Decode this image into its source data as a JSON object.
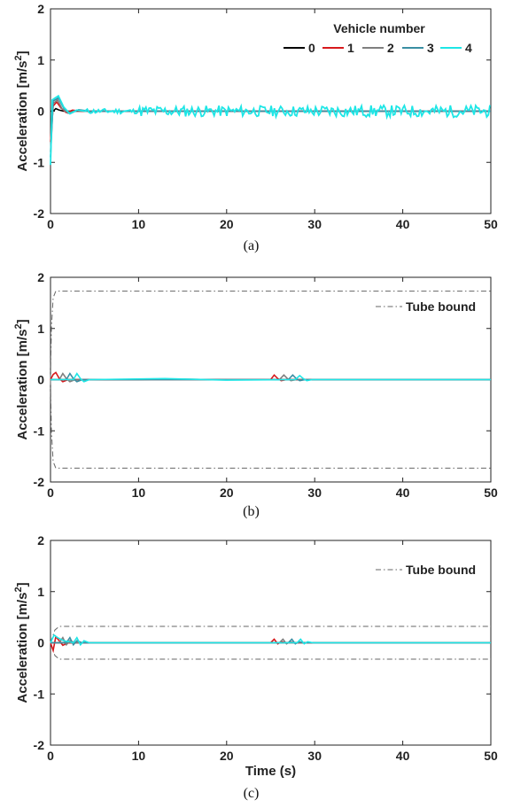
{
  "chart_data": [
    {
      "type": "line",
      "caption": "(a)",
      "xlabel": "",
      "ylabel": "Acceleration [m/s^2]",
      "xlim": [
        0,
        50
      ],
      "ylim": [
        -2,
        2
      ],
      "xticks": [
        0,
        10,
        20,
        30,
        40,
        50
      ],
      "yticks": [
        -2,
        -1,
        0,
        1,
        2
      ],
      "legend": {
        "title": "Vehicle number",
        "placement": "top-right",
        "entries": [
          "0",
          "1",
          "2",
          "3",
          "4"
        ]
      },
      "series": [
        {
          "name": "0",
          "color": "#000000",
          "x": [
            0,
            0.3,
            0.6,
            1.0,
            1.5,
            2.0,
            3.0,
            50
          ],
          "y": [
            0,
            0,
            0.05,
            0.02,
            0.0,
            0.0,
            0.0,
            0.0
          ]
        },
        {
          "name": "1",
          "color": "#d7191c",
          "x": [
            0,
            0.3,
            0.7,
            1.2,
            1.8,
            2.5,
            3.5,
            5,
            50
          ],
          "y": [
            -0.6,
            0.1,
            0.18,
            0.06,
            -0.03,
            0.02,
            0.0,
            0.0,
            0.0
          ]
        },
        {
          "name": "2",
          "color": "#7f7f7f",
          "x": [
            0,
            0.3,
            0.8,
            1.3,
            2.0,
            3.0,
            4.0,
            50
          ],
          "y": [
            -0.8,
            0.15,
            0.22,
            0.05,
            -0.04,
            0.02,
            0.0,
            0.0
          ]
        },
        {
          "name": "3",
          "color": "#3a8fa3",
          "x": [
            0,
            0.3,
            0.9,
            1.5,
            2.2,
            3.2,
            4.5,
            50
          ],
          "y": [
            -0.9,
            0.2,
            0.26,
            0.06,
            -0.05,
            0.03,
            0.0,
            0.0
          ]
        },
        {
          "name": "4",
          "color": "#1ee6e6",
          "noisy": true,
          "x": [
            0,
            0.2,
            0.9,
            1.5,
            2.2,
            3.0,
            4.0,
            50
          ],
          "y": [
            -1.05,
            0.22,
            0.3,
            0.08,
            -0.05,
            0.02,
            0.0,
            0.0
          ]
        }
      ]
    },
    {
      "type": "line",
      "caption": "(b)",
      "xlabel": "",
      "ylabel": "Acceleration [m/s^2]",
      "xlim": [
        0,
        50
      ],
      "ylim": [
        -2,
        2
      ],
      "xticks": [
        0,
        10,
        20,
        30,
        40,
        50
      ],
      "yticks": [
        -2,
        -1,
        0,
        1,
        2
      ],
      "legend": {
        "placement": "top-right",
        "entries": [
          "Tube bound"
        ]
      },
      "bound": {
        "name": "Tube bound",
        "x": [
          0,
          0.1,
          0.3,
          0.6,
          50
        ],
        "upper": [
          0,
          1.0,
          1.6,
          1.73,
          1.73
        ],
        "lower": [
          0,
          -1.0,
          -1.6,
          -1.73,
          -1.73
        ]
      },
      "series": [
        {
          "name": "0",
          "color": "#000000",
          "x": [
            0,
            2,
            10,
            13,
            20,
            25,
            50
          ],
          "y": [
            0,
            0,
            0.0,
            0.01,
            0.0,
            0.0,
            0.0
          ]
        },
        {
          "name": "1",
          "color": "#d7191c",
          "x": [
            0,
            0.3,
            0.6,
            1.0,
            1.4,
            2.0,
            25.0,
            25.4,
            25.8,
            26.2,
            26.8,
            50
          ],
          "y": [
            0,
            0.1,
            0.14,
            0.02,
            -0.04,
            0.0,
            0.0,
            0.09,
            0.02,
            -0.02,
            0.0,
            0.0
          ]
        },
        {
          "name": "2",
          "color": "#7f7f7f",
          "x": [
            0,
            1.0,
            1.4,
            1.8,
            2.2,
            2.8,
            26.0,
            26.5,
            26.9,
            27.3,
            27.9,
            50
          ],
          "y": [
            0,
            0.0,
            0.12,
            0.02,
            -0.04,
            0.0,
            0.0,
            0.09,
            0.02,
            -0.02,
            0.0,
            0.0
          ]
        },
        {
          "name": "3",
          "color": "#3a8fa3",
          "x": [
            0,
            1.8,
            2.2,
            2.6,
            3.0,
            3.6,
            27.0,
            27.5,
            27.9,
            28.3,
            28.9,
            50
          ],
          "y": [
            0,
            0.0,
            0.12,
            0.02,
            -0.04,
            0.0,
            0.0,
            0.09,
            0.02,
            -0.02,
            0.0,
            0.0
          ]
        },
        {
          "name": "4",
          "color": "#1ee6e6",
          "x": [
            0,
            2.6,
            3.0,
            3.4,
            3.8,
            4.4,
            13,
            20,
            27.8,
            28.3,
            28.7,
            29.1,
            29.7,
            50
          ],
          "y": [
            0,
            0.0,
            0.12,
            0.02,
            -0.04,
            0.0,
            0.02,
            -0.01,
            0.0,
            0.08,
            0.02,
            -0.02,
            0.0,
            0.0
          ]
        }
      ]
    },
    {
      "type": "line",
      "caption": "(c)",
      "xlabel": "Time (s)",
      "ylabel": "Acceleration [m/s^2]",
      "xlim": [
        0,
        50
      ],
      "ylim": [
        -2,
        2
      ],
      "xticks": [
        0,
        10,
        20,
        30,
        40,
        50
      ],
      "yticks": [
        -2,
        -1,
        0,
        1,
        2
      ],
      "legend": {
        "placement": "top-right",
        "entries": [
          "Tube bound"
        ]
      },
      "bound": {
        "name": "Tube bound",
        "x": [
          0,
          0.2,
          0.5,
          1.0,
          50
        ],
        "upper": [
          0,
          0.1,
          0.25,
          0.32,
          0.32
        ],
        "lower": [
          0,
          -0.1,
          -0.25,
          -0.32,
          -0.32
        ]
      },
      "series": [
        {
          "name": "0",
          "color": "#000000",
          "x": [
            0,
            2,
            50
          ],
          "y": [
            0,
            0,
            0
          ]
        },
        {
          "name": "1",
          "color": "#d7191c",
          "x": [
            0,
            0.3,
            0.6,
            1.0,
            1.4,
            2.0,
            25.0,
            25.4,
            25.8,
            26.2,
            26.8,
            50
          ],
          "y": [
            0,
            -0.15,
            0.12,
            0.04,
            -0.05,
            0.0,
            0.0,
            0.07,
            -0.02,
            0.02,
            0.0,
            0.0
          ]
        },
        {
          "name": "2",
          "color": "#7f7f7f",
          "x": [
            0,
            1.0,
            1.4,
            1.8,
            2.2,
            2.8,
            26.0,
            26.4,
            26.8,
            27.2,
            27.8,
            50
          ],
          "y": [
            0,
            0.0,
            0.1,
            -0.04,
            0.04,
            0.0,
            0.0,
            0.07,
            -0.02,
            0.02,
            0.0,
            0.0
          ]
        },
        {
          "name": "3",
          "color": "#3a8fa3",
          "x": [
            0,
            1.8,
            2.2,
            2.6,
            3.0,
            3.6,
            27.0,
            27.4,
            27.8,
            28.2,
            28.8,
            50
          ],
          "y": [
            0,
            0.0,
            0.1,
            -0.04,
            0.04,
            0.0,
            0.0,
            0.07,
            -0.02,
            0.02,
            0.0,
            0.0
          ]
        },
        {
          "name": "4",
          "color": "#1ee6e6",
          "x": [
            0,
            0.4,
            0.8,
            1.5,
            2.6,
            3.0,
            3.4,
            3.8,
            4.4,
            28.0,
            28.4,
            28.8,
            29.2,
            29.8,
            50
          ],
          "y": [
            0,
            0.15,
            0.1,
            0.04,
            0.0,
            0.1,
            -0.04,
            0.04,
            0.0,
            0.0,
            0.07,
            -0.02,
            0.02,
            0.0,
            0.0
          ]
        }
      ]
    }
  ]
}
